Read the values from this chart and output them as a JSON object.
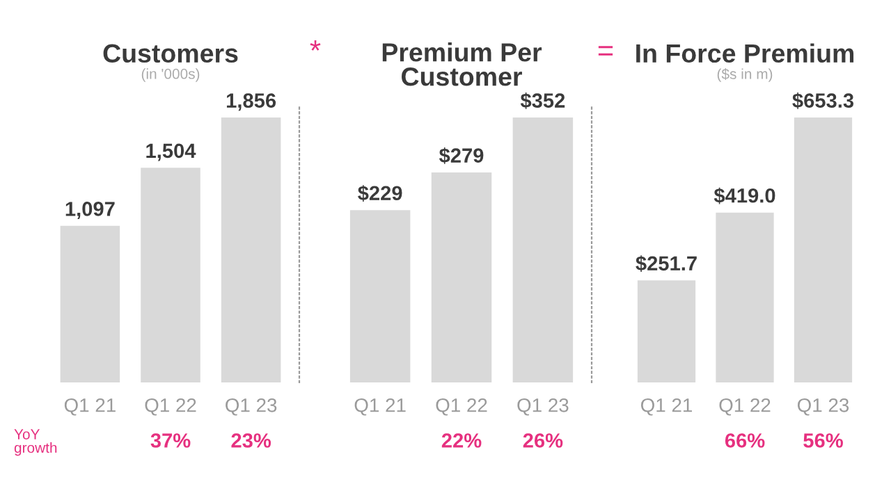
{
  "chart_data": [
    {
      "type": "bar",
      "title": "Customers",
      "subtitle": "(in '000s)",
      "categories": [
        "Q1 21",
        "Q1 22",
        "Q1 23"
      ],
      "values": [
        1097,
        1504,
        1856
      ],
      "value_labels": [
        "1,097",
        "1,504",
        "1,856"
      ],
      "color": "#d9d9d9",
      "tick_labels": "x",
      "grid": false,
      "legend": false,
      "annotations": [
        "YoY growth",
        "*",
        "37%",
        "23%"
      ]
    },
    {
      "type": "bar",
      "title": "Premium Per\nCustomer",
      "categories": [
        "Q1 21",
        "Q1 22",
        "Q1 23"
      ],
      "values": [
        229,
        279,
        352
      ],
      "value_labels": [
        "$229",
        "$279",
        "$352"
      ],
      "color": "#d9d9d9",
      "tick_labels": "x",
      "grid": false,
      "legend": false,
      "annotations": [
        "=",
        "22%",
        "26%"
      ]
    },
    {
      "type": "bar",
      "title": "In Force Premium",
      "subtitle": "($s in m)",
      "categories": [
        "Q1 21",
        "Q1 22",
        "Q1 23"
      ],
      "values": [
        251.7,
        419.0,
        653.3
      ],
      "value_labels": [
        "$251.7",
        "$419.0",
        "$653.3"
      ],
      "color": "#d9d9d9",
      "tick_labels": "x",
      "grid": false,
      "legend": false,
      "annotations": [
        "66%",
        "56%"
      ]
    }
  ]
}
